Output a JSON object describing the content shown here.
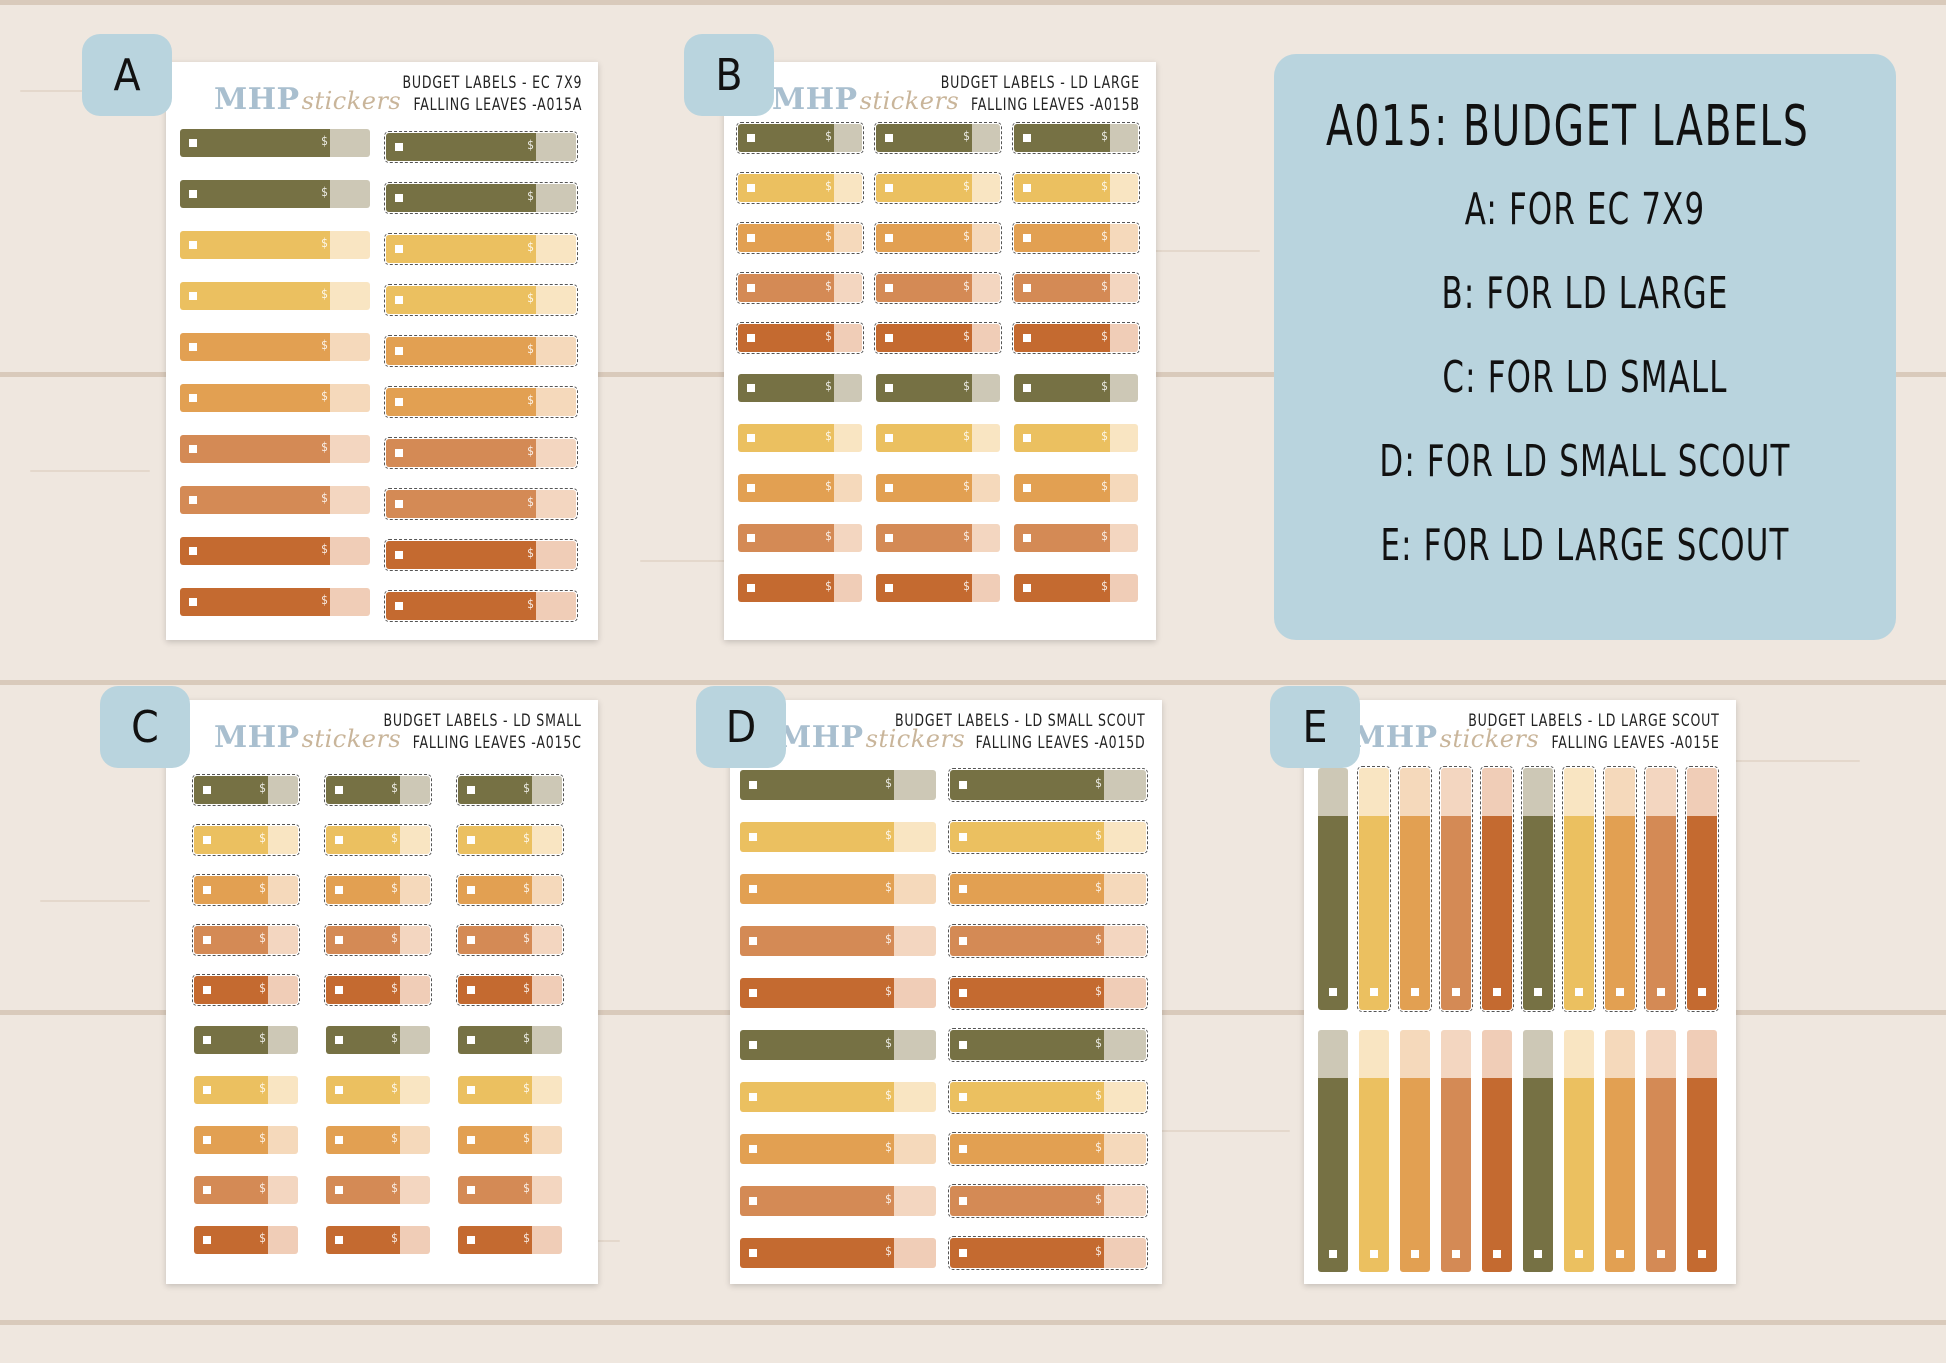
{
  "colors": {
    "olive": "#767144",
    "mustard": "#ebc060",
    "apricot": "#e2a052",
    "clay": "#d48a55",
    "rust": "#c46a30",
    "olive_tab": "#cdc8b6",
    "mustard_tab": "#f9e5c2",
    "apricot_tab": "#f5d9bb",
    "clay_tab": "#f3d6c0",
    "rust_tab": "#f0cdb7",
    "badge": "#b9d4de",
    "logo": "#a9bfcf"
  },
  "logo": {
    "brand": "MHP",
    "script": "stickers"
  },
  "info": {
    "title": "A015: BUDGET LABELS",
    "lines": [
      "A: FOR EC 7X9",
      "B: FOR LD LARGE",
      "C: FOR LD SMALL",
      "D: FOR LD SMALL SCOUT",
      "E: FOR LD LARGE SCOUT"
    ]
  },
  "sheets": [
    {
      "badge": "A",
      "title_line1": "BUDGET LABELS - EC 7X9",
      "title_line2": "FALLING LEAVES -A015A"
    },
    {
      "badge": "B",
      "title_line1": "BUDGET LABELS - LD LARGE",
      "title_line2": "FALLING LEAVES -A015B"
    },
    {
      "badge": "C",
      "title_line1": "BUDGET LABELS - LD SMALL",
      "title_line2": "FALLING LEAVES -A015C"
    },
    {
      "badge": "D",
      "title_line1": "BUDGET LABELS - LD SMALL SCOUT",
      "title_line2": "FALLING LEAVES -A015D"
    },
    {
      "badge": "E",
      "title_line1": "BUDGET LABELS - LD LARGE SCOUT",
      "title_line2": "FALLING LEAVES -A015E"
    }
  ],
  "dollar_sign": "$"
}
